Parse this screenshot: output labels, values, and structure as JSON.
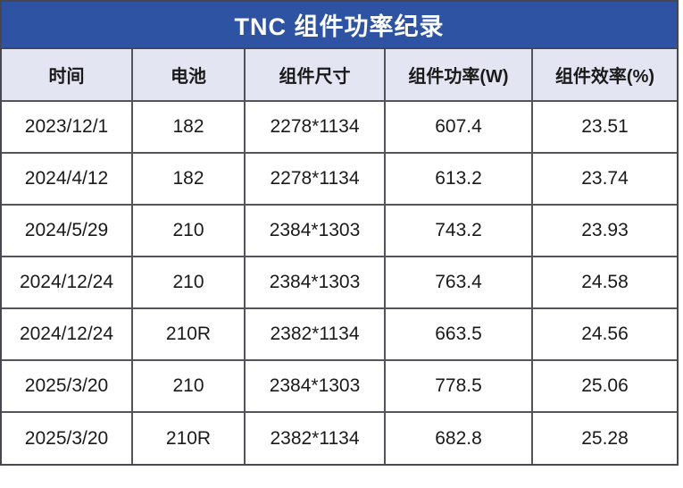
{
  "page": {
    "title": "TNC 组件功率纪录"
  },
  "chart_data": {
    "type": "table",
    "title": "TNC 组件功率纪录",
    "columns": [
      "时间",
      "电池",
      "组件尺寸",
      "组件功率(W)",
      "组件效率(%)"
    ],
    "rows": [
      [
        "2023/12/1",
        "182",
        "2278*1134",
        "607.4",
        "23.51"
      ],
      [
        "2024/4/12",
        "182",
        "2278*1134",
        "613.2",
        "23.74"
      ],
      [
        "2024/5/29",
        "210",
        "2384*1303",
        "743.2",
        "23.93"
      ],
      [
        "2024/12/24",
        "210",
        "2384*1303",
        "763.4",
        "24.58"
      ],
      [
        "2024/12/24",
        "210R",
        "2382*1134",
        "663.5",
        "24.56"
      ],
      [
        "2025/3/20",
        "210",
        "2384*1303",
        "778.5",
        "25.06"
      ],
      [
        "2025/3/20",
        "210R",
        "2382*1134",
        "682.8",
        "25.28"
      ]
    ],
    "layout": {
      "legend": "none",
      "grid": "full-borders"
    }
  },
  "colors": {
    "title_bg": "#2d53a2",
    "title_text": "#ffffff",
    "header_bg": "#e3e5f3",
    "row_bg": "#ffffff",
    "border": "#53535c",
    "text": "#1a1a1a"
  }
}
